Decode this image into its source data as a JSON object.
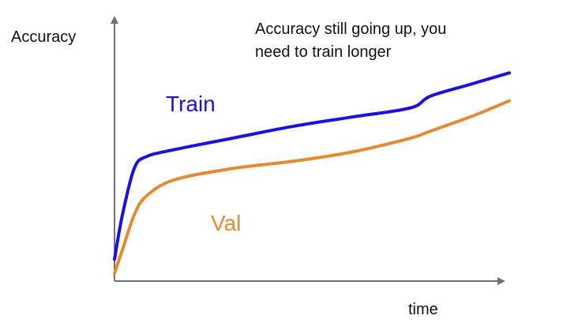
{
  "chart_data": {
    "type": "line",
    "title": "",
    "xlabel": "time",
    "ylabel": "Accuracy",
    "annotation": "Accuracy still going up, you need to train longer",
    "annotation_lines": [
      "Accuracy still going up, you",
      "need to train longer"
    ],
    "x": [
      0,
      0.02,
      0.05,
      0.08,
      0.15,
      0.3,
      0.45,
      0.6,
      0.75,
      0.8,
      0.9,
      1.0
    ],
    "xlim": [
      0,
      1
    ],
    "ylim": [
      0,
      1
    ],
    "series": [
      {
        "name": "Train",
        "color": "#1a10e0",
        "values": [
          0.06,
          0.25,
          0.45,
          0.5,
          0.53,
          0.58,
          0.63,
          0.67,
          0.71,
          0.76,
          0.81,
          0.86
        ]
      },
      {
        "name": "Val",
        "color": "#e58a30",
        "values": [
          0.0,
          0.1,
          0.25,
          0.33,
          0.4,
          0.45,
          0.48,
          0.52,
          0.58,
          0.61,
          0.67,
          0.74
        ]
      }
    ],
    "grid": false,
    "legend": "inline labels"
  },
  "colors": {
    "axis": "#707070",
    "text": "#111111"
  }
}
